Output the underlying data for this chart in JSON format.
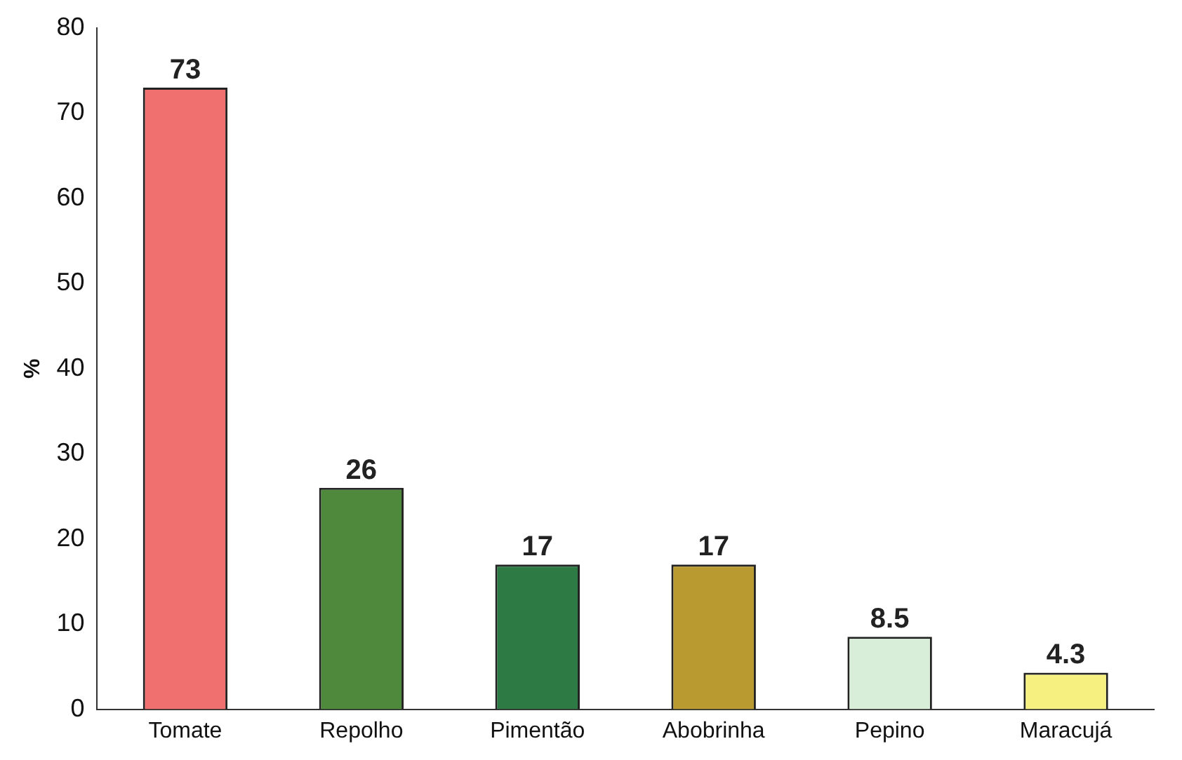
{
  "chart_data": {
    "type": "bar",
    "ylabel": "%",
    "categories": [
      "Tomate",
      "Repolho",
      "Pimentão",
      "Abobrinha",
      "Pepino",
      "Maracujá"
    ],
    "values": [
      73,
      26,
      17,
      17,
      8.5,
      4.3
    ],
    "colors": [
      "#f07070",
      "#4f8a3c",
      "#2e7a45",
      "#b89a30",
      "#d8eed8",
      "#f5f080"
    ],
    "ylim": [
      0,
      80
    ],
    "yticks": [
      0,
      10,
      20,
      30,
      40,
      50,
      60,
      70,
      80
    ],
    "grid": false,
    "legend": false,
    "data_labels": true
  }
}
